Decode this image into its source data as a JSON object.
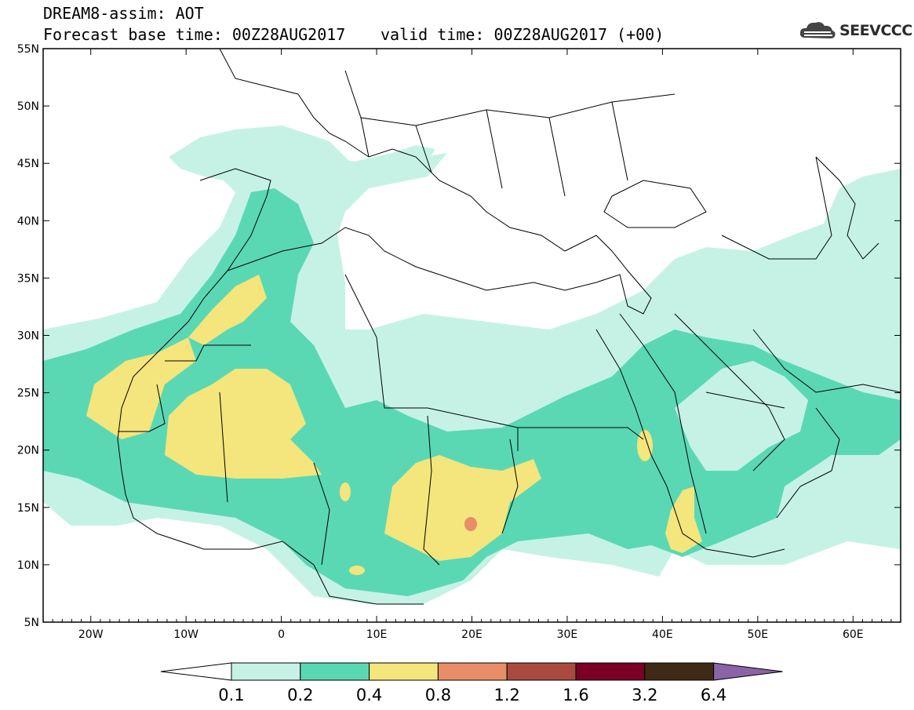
{
  "header": {
    "line1": "DREAM8-assim: AOT",
    "line2": "Forecast base time: 00Z28AUG2017",
    "line3": "valid time: 00Z28AUG2017 (+00)",
    "logo_text": "SEEVCCC"
  },
  "map": {
    "lon_range": [
      -25,
      65
    ],
    "lat_range": [
      5,
      55
    ],
    "lat_labels": [
      "55N",
      "50N",
      "45N",
      "40N",
      "35N",
      "30N",
      "25N",
      "20N",
      "15N",
      "10N",
      "5N"
    ],
    "lon_labels": [
      "20W",
      "10W",
      "0",
      "10E",
      "20E",
      "30E",
      "40E",
      "50E",
      "60E"
    ]
  },
  "colorbar": {
    "labels": [
      "0.1",
      "0.2",
      "0.4",
      "0.8",
      "1.2",
      "1.6",
      "3.2",
      "6.4"
    ],
    "colors": [
      "#ffffff",
      "#c6f2e6",
      "#5ad8b4",
      "#f4e57c",
      "#e78e68",
      "#a94a3e",
      "#7a0026",
      "#3f2a16",
      "#8a64a6"
    ]
  }
}
